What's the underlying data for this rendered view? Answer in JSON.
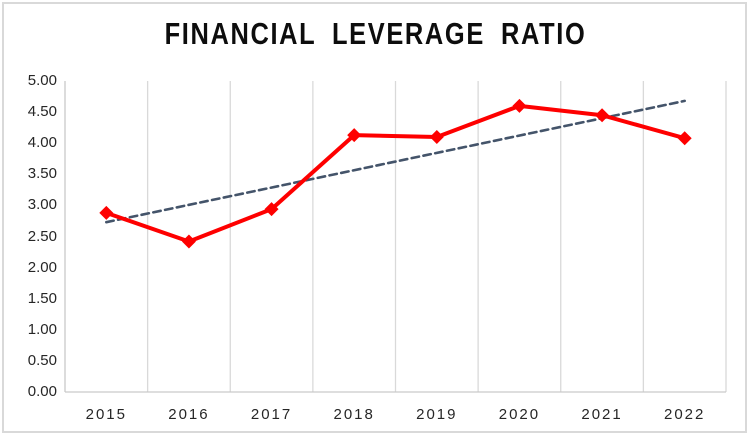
{
  "chart_data": {
    "type": "line",
    "title": "FINANCIAL LEVERAGE RATIO",
    "categories": [
      "2015",
      "2016",
      "2017",
      "2018",
      "2019",
      "2020",
      "2021",
      "2022"
    ],
    "series": [
      {
        "name": "Financial Leverage Ratio",
        "values": [
          2.88,
          2.42,
          2.94,
          4.13,
          4.1,
          4.6,
          4.45,
          4.08
        ],
        "color": "#fe0000",
        "marker": "diamond",
        "line_width": 4
      }
    ],
    "trendline": {
      "type": "linear",
      "style": "dashed",
      "color": "#44546a",
      "start_value": 2.73,
      "end_value": 4.68,
      "line_width": 2.6
    },
    "xlabel": "",
    "ylabel": "",
    "ylim": [
      0,
      5
    ],
    "y_step": 0.5,
    "y_ticks": [
      "5.00",
      "4.50",
      "4.00",
      "3.50",
      "3.00",
      "2.50",
      "2.00",
      "1.50",
      "1.00",
      "0.50",
      "0.00"
    ],
    "grid": {
      "vertical": true,
      "horizontal": false,
      "color": "#d9d9d9"
    },
    "axis_line_color": "#c9c9c9",
    "tick_text_color": "#262626",
    "legend": "none",
    "background": "#ffffff",
    "border_color": "#d9d9d9"
  }
}
